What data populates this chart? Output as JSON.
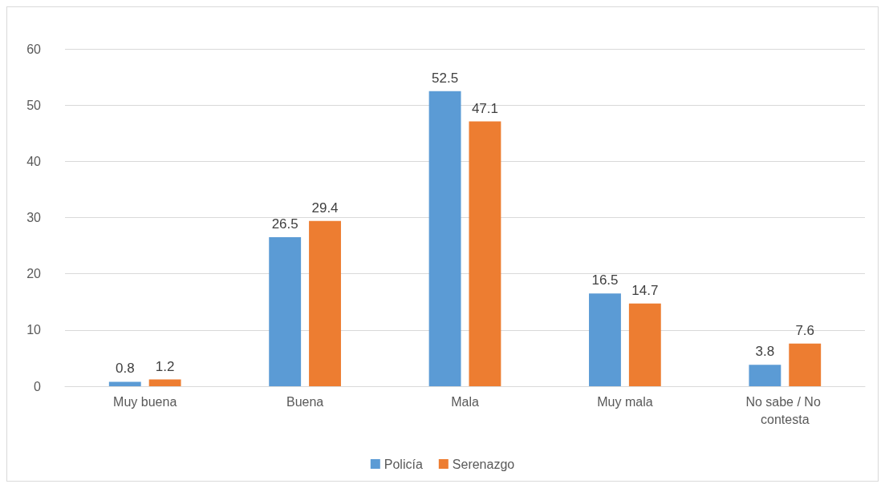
{
  "chart_data": {
    "type": "bar",
    "categories": [
      "Muy buena",
      "Buena",
      "Mala",
      "Muy mala",
      "No sabe / No contesta"
    ],
    "series": [
      {
        "name": "Policía",
        "color": "#5b9bd5",
        "values": [
          0.8,
          26.5,
          52.5,
          16.5,
          3.8
        ]
      },
      {
        "name": "Serenazgo",
        "color": "#ed7d31",
        "values": [
          1.2,
          29.4,
          47.1,
          14.7,
          7.6
        ]
      }
    ],
    "ylim": [
      0,
      60
    ],
    "yticks": [
      0,
      10,
      20,
      30,
      40,
      50,
      60
    ],
    "grid": "y",
    "legend": "bottom",
    "data_labels": true
  }
}
